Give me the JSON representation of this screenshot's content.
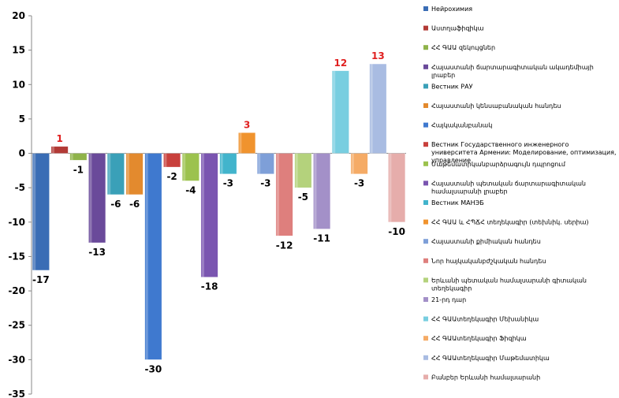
{
  "chart_data": {
    "type": "bar",
    "ylim": [
      -35,
      20
    ],
    "yticks": [
      -35,
      -30,
      -25,
      -20,
      -15,
      -10,
      -5,
      0,
      5,
      10,
      15,
      20
    ],
    "grid": false,
    "legend_position": "right",
    "series": [
      {
        "name": "Нейрохимия",
        "value": -17,
        "color": "#3a6db5",
        "label_color": "#000000"
      },
      {
        "name": "Աստղաֆիզիկա",
        "value": 1,
        "color": "#b23a36",
        "label_color": "#e02020"
      },
      {
        "name": "ՀՀ ԳԱԱ զեկույցներ",
        "value": -1,
        "color": "#8fb34a",
        "label_color": "#000000"
      },
      {
        "name": "Հայաստանի ճարտարագիտական ակադեմիայի լրաբեր",
        "value": -13,
        "color": "#6a4a9a",
        "label_color": "#000000"
      },
      {
        "name": "Вестник РАУ",
        "value": -6,
        "color": "#3aa0b8",
        "label_color": "#000000"
      },
      {
        "name": "Հայաստանի կենսաբանական հանդես",
        "value": -6,
        "color": "#e38a2e",
        "label_color": "#000000"
      },
      {
        "name": "Հայկականբանակ",
        "value": -30,
        "color": "#3f79cf",
        "label_color": "#000000"
      },
      {
        "name": "Вестник Государственного инженерного университета Армении: Моделирование, оптимизация, управление",
        "value": -2,
        "color": "#c8403c",
        "label_color": "#000000"
      },
      {
        "name": "Մաթեմատիկանբարձրագույն դպրոցում",
        "value": -4,
        "color": "#9cc24e",
        "label_color": "#000000"
      },
      {
        "name": "Հայաստանի պետական ճարտարագիտական համալսարանի լրաբեր",
        "value": -18,
        "color": "#7a55b0",
        "label_color": "#000000"
      },
      {
        "name": "Вестник МАНЭБ",
        "value": -3,
        "color": "#42b4cc",
        "label_color": "#000000"
      },
      {
        "name": "ՀՀ ԳԱԱ և ՀՊՃՀ տեղեկագիր (տեխնիկ. սերիա)",
        "value": 3,
        "color": "#f0932e",
        "label_color": "#e02020"
      },
      {
        "name": "Հայաստանի քիմիական հանդես",
        "value": -3,
        "color": "#7e9fd8",
        "label_color": "#000000"
      },
      {
        "name": "Նոր հայկականբժշկական հանդես",
        "value": -12,
        "color": "#de7f7d",
        "label_color": "#000000"
      },
      {
        "name": "Երևանի պետական համալսարանի գիտական տեղեկագիր",
        "value": -5,
        "color": "#b4d27c",
        "label_color": "#000000"
      },
      {
        "name": "21-րդ դար",
        "value": -11,
        "color": "#a390c8",
        "label_color": "#000000"
      },
      {
        "name": "ՀՀ ԳԱԱտեղեկագիր Մեխանիկա",
        "value": 12,
        "color": "#78cee0",
        "label_color": "#e02020"
      },
      {
        "name": "ՀՀ ԳԱԱտեղեկագիր Ֆիզիկա",
        "value": -3,
        "color": "#f5ab66",
        "label_color": "#000000"
      },
      {
        "name": "ՀՀ ԳԱԱտեղեկագիր Մաթեմատիկա",
        "value": 13,
        "color": "#a9bce2",
        "label_color": "#e02020"
      },
      {
        "name": "Բանբեր Երևանի համալսարանի",
        "value": -10,
        "color": "#e6adab",
        "label_color": "#000000"
      }
    ]
  }
}
